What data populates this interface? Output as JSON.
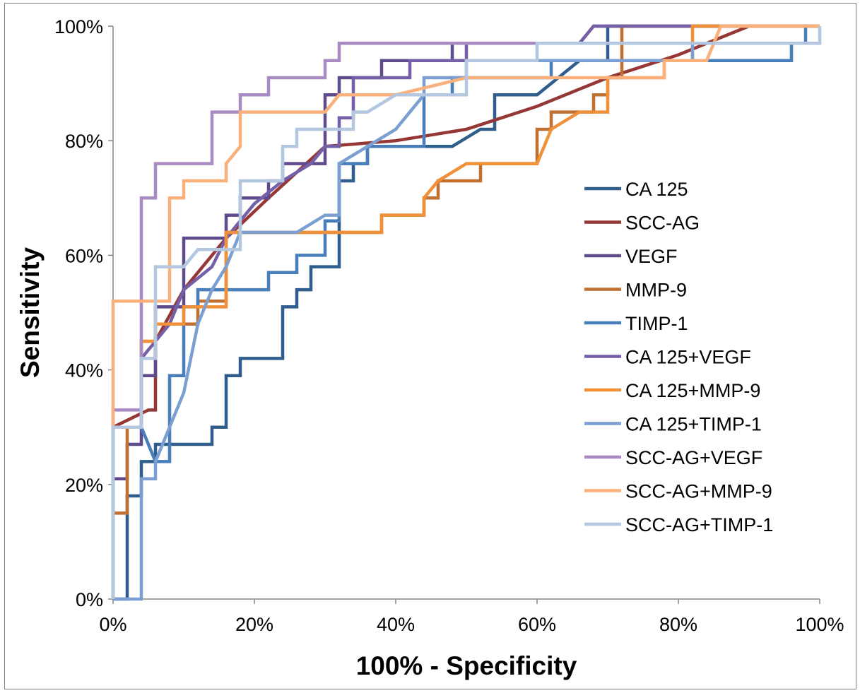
{
  "chart_data": {
    "type": "line",
    "xlabel": "100% - Specificity",
    "ylabel": "Sensitivity",
    "xlim": [
      0,
      100
    ],
    "ylim": [
      0,
      100
    ],
    "x_ticks": [
      "0%",
      "20%",
      "40%",
      "60%",
      "80%",
      "100%"
    ],
    "y_ticks": [
      "0%",
      "20%",
      "40%",
      "60%",
      "80%",
      "100%"
    ],
    "grid": false,
    "legend_position": "right",
    "series": [
      {
        "name": "CA 125",
        "color": "#2f5d8c",
        "points": [
          [
            0,
            0
          ],
          [
            2,
            0
          ],
          [
            2,
            18
          ],
          [
            4,
            18
          ],
          [
            4,
            24
          ],
          [
            6,
            24
          ],
          [
            6,
            27
          ],
          [
            14,
            27
          ],
          [
            14,
            30
          ],
          [
            16,
            30
          ],
          [
            16,
            39
          ],
          [
            18,
            39
          ],
          [
            18,
            42
          ],
          [
            24,
            42
          ],
          [
            24,
            51
          ],
          [
            26,
            51
          ],
          [
            26,
            54
          ],
          [
            28,
            54
          ],
          [
            28,
            58
          ],
          [
            32,
            58
          ],
          [
            32,
            73
          ],
          [
            34,
            73
          ],
          [
            34,
            76
          ],
          [
            36,
            76
          ],
          [
            36,
            79
          ],
          [
            48,
            79
          ],
          [
            52,
            82
          ],
          [
            54,
            82
          ],
          [
            54,
            88
          ],
          [
            60,
            88
          ],
          [
            66,
            94
          ],
          [
            70,
            94
          ],
          [
            70,
            100
          ],
          [
            100,
            100
          ]
        ]
      },
      {
        "name": "SCC-AG",
        "color": "#953735",
        "points": [
          [
            0,
            0
          ],
          [
            0,
            30
          ],
          [
            5,
            33
          ],
          [
            6,
            33
          ],
          [
            6,
            45
          ],
          [
            10,
            54
          ],
          [
            16,
            63
          ],
          [
            22,
            70
          ],
          [
            30,
            79
          ],
          [
            40,
            80
          ],
          [
            50,
            82
          ],
          [
            60,
            86
          ],
          [
            70,
            91
          ],
          [
            80,
            95
          ],
          [
            90,
            100
          ],
          [
            100,
            100
          ]
        ]
      },
      {
        "name": "VEGF",
        "color": "#5f4b8b",
        "points": [
          [
            0,
            0
          ],
          [
            0,
            21
          ],
          [
            2,
            21
          ],
          [
            2,
            27
          ],
          [
            4,
            27
          ],
          [
            4,
            39
          ],
          [
            6,
            39
          ],
          [
            6,
            51
          ],
          [
            10,
            51
          ],
          [
            10,
            63
          ],
          [
            14,
            63
          ],
          [
            16,
            63
          ],
          [
            16,
            67
          ],
          [
            18,
            67
          ],
          [
            18,
            70
          ],
          [
            22,
            70
          ],
          [
            22,
            73
          ],
          [
            24,
            73
          ],
          [
            24,
            76
          ],
          [
            28,
            76
          ],
          [
            30,
            76
          ],
          [
            30,
            88
          ],
          [
            32,
            88
          ],
          [
            32,
            91
          ],
          [
            38,
            91
          ],
          [
            38,
            94
          ],
          [
            48,
            94
          ],
          [
            48,
            97
          ],
          [
            66,
            97
          ],
          [
            68,
            100
          ],
          [
            100,
            100
          ]
        ]
      },
      {
        "name": "MMP-9",
        "color": "#c07030",
        "points": [
          [
            0,
            0
          ],
          [
            0,
            15
          ],
          [
            2,
            15
          ],
          [
            2,
            30
          ],
          [
            4,
            30
          ],
          [
            4,
            45
          ],
          [
            6,
            45
          ],
          [
            6,
            48
          ],
          [
            12,
            48
          ],
          [
            12,
            52
          ],
          [
            16,
            52
          ],
          [
            16,
            64
          ],
          [
            38,
            64
          ],
          [
            38,
            67
          ],
          [
            44,
            67
          ],
          [
            44,
            70
          ],
          [
            46,
            70
          ],
          [
            46,
            73
          ],
          [
            52,
            73
          ],
          [
            52,
            76
          ],
          [
            60,
            76
          ],
          [
            60,
            82
          ],
          [
            62,
            82
          ],
          [
            62,
            85
          ],
          [
            66,
            85
          ],
          [
            68,
            85
          ],
          [
            68,
            88
          ],
          [
            70,
            88
          ],
          [
            70,
            91
          ],
          [
            72,
            91
          ],
          [
            72,
            100
          ],
          [
            100,
            100
          ]
        ]
      },
      {
        "name": "TIMP-1",
        "color": "#4a7ebb",
        "points": [
          [
            0,
            0
          ],
          [
            0,
            30
          ],
          [
            2,
            30
          ],
          [
            2,
            30
          ],
          [
            4,
            30
          ],
          [
            4,
            30
          ],
          [
            6,
            24
          ],
          [
            8,
            24
          ],
          [
            8,
            39
          ],
          [
            10,
            39
          ],
          [
            10,
            51
          ],
          [
            12,
            51
          ],
          [
            12,
            54
          ],
          [
            20,
            54
          ],
          [
            22,
            54
          ],
          [
            22,
            57
          ],
          [
            24,
            57
          ],
          [
            26,
            57
          ],
          [
            26,
            60
          ],
          [
            28,
            60
          ],
          [
            28,
            60
          ],
          [
            30,
            60
          ],
          [
            30,
            66
          ],
          [
            32,
            66
          ],
          [
            32,
            76
          ],
          [
            36,
            76
          ],
          [
            36,
            79
          ],
          [
            42,
            79
          ],
          [
            42,
            79
          ],
          [
            44,
            79
          ],
          [
            44,
            82
          ],
          [
            44,
            88
          ],
          [
            48,
            88
          ],
          [
            48,
            91
          ],
          [
            62,
            91
          ],
          [
            62,
            94
          ],
          [
            96,
            94
          ],
          [
            96,
            97
          ],
          [
            98,
            97
          ],
          [
            98,
            100
          ],
          [
            100,
            100
          ]
        ]
      },
      {
        "name": "CA 125+VEGF",
        "color": "#7560a8",
        "points": [
          [
            0,
            0
          ],
          [
            0,
            30
          ],
          [
            4,
            30
          ],
          [
            4,
            42
          ],
          [
            6,
            45
          ],
          [
            8,
            48
          ],
          [
            10,
            54
          ],
          [
            14,
            58
          ],
          [
            16,
            63
          ],
          [
            18,
            66
          ],
          [
            20,
            69
          ],
          [
            24,
            73
          ],
          [
            28,
            76
          ],
          [
            30,
            79
          ],
          [
            32,
            79
          ],
          [
            32,
            84
          ],
          [
            34,
            84
          ],
          [
            34,
            91
          ],
          [
            42,
            91
          ],
          [
            42,
            94
          ],
          [
            50,
            94
          ],
          [
            50,
            97
          ],
          [
            66,
            97
          ],
          [
            68,
            100
          ],
          [
            100,
            100
          ]
        ]
      },
      {
        "name": "CA 125+MMP-9",
        "color": "#f0913a",
        "points": [
          [
            0,
            0
          ],
          [
            0,
            30
          ],
          [
            4,
            30
          ],
          [
            4,
            45
          ],
          [
            6,
            45
          ],
          [
            6,
            48
          ],
          [
            10,
            48
          ],
          [
            10,
            51
          ],
          [
            16,
            51
          ],
          [
            16,
            64
          ],
          [
            38,
            64
          ],
          [
            38,
            67
          ],
          [
            44,
            67
          ],
          [
            44,
            70
          ],
          [
            46,
            73
          ],
          [
            50,
            76
          ],
          [
            60,
            76
          ],
          [
            62,
            82
          ],
          [
            66,
            85
          ],
          [
            70,
            85
          ],
          [
            70,
            91
          ],
          [
            78,
            91
          ],
          [
            78,
            94
          ],
          [
            82,
            94
          ],
          [
            82,
            100
          ],
          [
            100,
            100
          ]
        ]
      },
      {
        "name": "CA 125+TIMP-1",
        "color": "#7b9fd1",
        "points": [
          [
            0,
            0
          ],
          [
            4,
            0
          ],
          [
            4,
            21
          ],
          [
            6,
            21
          ],
          [
            6,
            24
          ],
          [
            8,
            30
          ],
          [
            10,
            36
          ],
          [
            12,
            48
          ],
          [
            14,
            54
          ],
          [
            16,
            58
          ],
          [
            18,
            64
          ],
          [
            26,
            64
          ],
          [
            30,
            67
          ],
          [
            32,
            67
          ],
          [
            32,
            76
          ],
          [
            36,
            79
          ],
          [
            40,
            82
          ],
          [
            42,
            85
          ],
          [
            44,
            88
          ],
          [
            44,
            91
          ],
          [
            50,
            91
          ],
          [
            50,
            94
          ],
          [
            82,
            94
          ],
          [
            82,
            97
          ],
          [
            100,
            97
          ]
        ]
      },
      {
        "name": "SCC-AG+VEGF",
        "color": "#a98bc4",
        "points": [
          [
            0,
            0
          ],
          [
            0,
            33
          ],
          [
            4,
            33
          ],
          [
            4,
            70
          ],
          [
            6,
            70
          ],
          [
            6,
            76
          ],
          [
            14,
            76
          ],
          [
            14,
            85
          ],
          [
            18,
            85
          ],
          [
            18,
            88
          ],
          [
            22,
            88
          ],
          [
            22,
            91
          ],
          [
            30,
            91
          ],
          [
            30,
            94
          ],
          [
            32,
            94
          ],
          [
            32,
            97
          ],
          [
            60,
            97
          ],
          [
            62,
            97
          ],
          [
            100,
            97
          ]
        ]
      },
      {
        "name": "SCC-AG+MMP-9",
        "color": "#fab07a",
        "points": [
          [
            0,
            0
          ],
          [
            0,
            52
          ],
          [
            8,
            52
          ],
          [
            8,
            55
          ],
          [
            8,
            70
          ],
          [
            10,
            70
          ],
          [
            10,
            73
          ],
          [
            16,
            73
          ],
          [
            16,
            76
          ],
          [
            18,
            79
          ],
          [
            18,
            85
          ],
          [
            30,
            85
          ],
          [
            32,
            88
          ],
          [
            40,
            88
          ],
          [
            40,
            88
          ],
          [
            50,
            91
          ],
          [
            76,
            91
          ],
          [
            78,
            91
          ],
          [
            78,
            94
          ],
          [
            84,
            94
          ],
          [
            86,
            100
          ],
          [
            100,
            100
          ]
        ]
      },
      {
        "name": "SCC-AG+TIMP-1",
        "color": "#b4c7e0",
        "points": [
          [
            0,
            0
          ],
          [
            0,
            30
          ],
          [
            4,
            30
          ],
          [
            4,
            42
          ],
          [
            6,
            42
          ],
          [
            6,
            58
          ],
          [
            10,
            58
          ],
          [
            12,
            61
          ],
          [
            18,
            61
          ],
          [
            18,
            73
          ],
          [
            24,
            73
          ],
          [
            24,
            79
          ],
          [
            26,
            79
          ],
          [
            26,
            82
          ],
          [
            32,
            82
          ],
          [
            34,
            82
          ],
          [
            34,
            85
          ],
          [
            36,
            85
          ],
          [
            36,
            85
          ],
          [
            40,
            88
          ],
          [
            44,
            88
          ],
          [
            50,
            88
          ],
          [
            50,
            94
          ],
          [
            60,
            94
          ],
          [
            60,
            97
          ],
          [
            100,
            97
          ],
          [
            100,
            100
          ]
        ]
      }
    ]
  }
}
